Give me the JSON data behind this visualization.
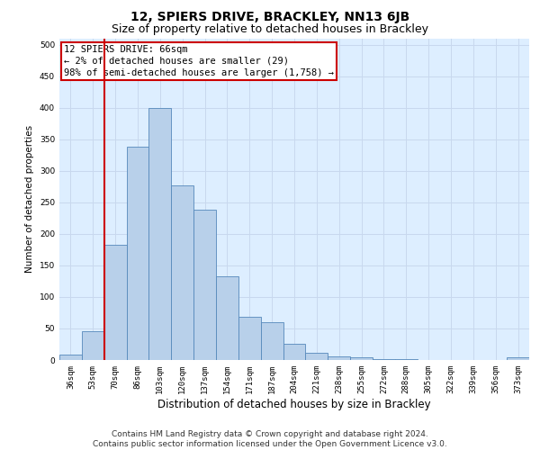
{
  "title": "12, SPIERS DRIVE, BRACKLEY, NN13 6JB",
  "subtitle": "Size of property relative to detached houses in Brackley",
  "xlabel": "Distribution of detached houses by size in Brackley",
  "ylabel": "Number of detached properties",
  "categories": [
    "36sqm",
    "53sqm",
    "70sqm",
    "86sqm",
    "103sqm",
    "120sqm",
    "137sqm",
    "154sqm",
    "171sqm",
    "187sqm",
    "204sqm",
    "221sqm",
    "238sqm",
    "255sqm",
    "272sqm",
    "288sqm",
    "305sqm",
    "322sqm",
    "339sqm",
    "356sqm",
    "373sqm"
  ],
  "values": [
    9,
    46,
    182,
    338,
    400,
    277,
    238,
    133,
    68,
    60,
    25,
    11,
    5,
    4,
    2,
    1,
    0,
    0,
    0,
    0,
    4
  ],
  "bar_color": "#b8d0ea",
  "bar_edge_color": "#5588bb",
  "vline_color": "#cc0000",
  "vline_x": 1.5,
  "annotation_text": "12 SPIERS DRIVE: 66sqm\n← 2% of detached houses are smaller (29)\n98% of semi-detached houses are larger (1,758) →",
  "annotation_box_color": "#ffffff",
  "annotation_box_edge_color": "#cc0000",
  "ylim": [
    0,
    510
  ],
  "yticks": [
    0,
    50,
    100,
    150,
    200,
    250,
    300,
    350,
    400,
    450,
    500
  ],
  "grid_color": "#c8d8ee",
  "background_color": "#ddeeff",
  "footer_text": "Contains HM Land Registry data © Crown copyright and database right 2024.\nContains public sector information licensed under the Open Government Licence v3.0.",
  "title_fontsize": 10,
  "subtitle_fontsize": 9,
  "xlabel_fontsize": 8.5,
  "ylabel_fontsize": 7.5,
  "tick_fontsize": 6.5,
  "annotation_fontsize": 7.5,
  "footer_fontsize": 6.5
}
